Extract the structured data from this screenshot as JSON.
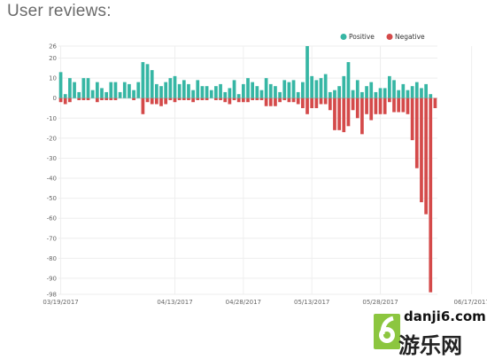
{
  "page": {
    "title": "User reviews:"
  },
  "watermark": {
    "url": "danji6.com",
    "name": "游乐网"
  },
  "colors": {
    "positive": "#36b6a4",
    "negative": "#d44a4a",
    "grid": "#eeeeee",
    "axis_text": "#666666"
  },
  "chart_data": {
    "type": "bar",
    "title": "User reviews:",
    "legend_position": "top-right",
    "ylim": [
      -98,
      26
    ],
    "yticks": [
      26,
      20,
      10,
      0,
      -10,
      -20,
      -30,
      -40,
      -50,
      -60,
      -70,
      -80,
      -90,
      -98
    ],
    "x_tick_labels": [
      "03/19/2017",
      "04/13/2017",
      "04/28/2017",
      "05/13/2017",
      "05/28/2017",
      "06/17/2017"
    ],
    "x_tick_days": [
      1,
      26,
      41,
      56,
      71,
      91
    ],
    "grid": true,
    "series": [
      {
        "name": "Positive",
        "color": "#36b6a4",
        "values": [
          13,
          2,
          10,
          8,
          3,
          10,
          10,
          4,
          8,
          5,
          3,
          8,
          8,
          3,
          8,
          7,
          4,
          8,
          18,
          17,
          14,
          7,
          6,
          8,
          10,
          11,
          7,
          9,
          7,
          4,
          9,
          6,
          6,
          4,
          6,
          7,
          3,
          5,
          9,
          2,
          7,
          10,
          8,
          6,
          4,
          10,
          7,
          6,
          3,
          9,
          8,
          9,
          3,
          8,
          26,
          11,
          9,
          10,
          12,
          3,
          4,
          6,
          11,
          18,
          4,
          9,
          3,
          6,
          8,
          3,
          5,
          5,
          11,
          9,
          4,
          7,
          4,
          6,
          8,
          5,
          7,
          2,
          0
        ]
      },
      {
        "name": "Negative",
        "color": "#d44a4a",
        "values": [
          -2,
          -3,
          -2,
          0,
          -1,
          -1,
          -1,
          0,
          -2,
          -1,
          -1,
          -1,
          -1,
          0,
          0,
          0,
          -1,
          0,
          -8,
          -2,
          -3,
          -3,
          -4,
          -3,
          -1,
          -2,
          -1,
          -1,
          -1,
          -2,
          -1,
          -1,
          -1,
          0,
          -1,
          -1,
          -2,
          -3,
          -1,
          -2,
          -2,
          -2,
          -1,
          -1,
          -1,
          -4,
          -4,
          -4,
          -2,
          -1,
          -2,
          -2,
          -3,
          -5,
          -8,
          -5,
          -5,
          -3,
          -3,
          -6,
          -16,
          -16,
          -17,
          -14,
          -6,
          -10,
          -18,
          -8,
          -11,
          -8,
          -8,
          -8,
          -2,
          -7,
          -7,
          -7,
          -8,
          -21,
          -35,
          -52,
          -58,
          -97,
          -5
        ]
      }
    ]
  }
}
